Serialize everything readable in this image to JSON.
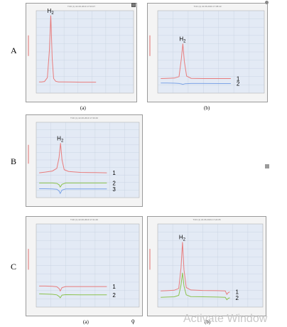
{
  "rows": [
    {
      "label": "A"
    },
    {
      "label": "B"
    },
    {
      "label": "C"
    }
  ],
  "stray_mark": "ǫ",
  "watermark": "Activate Window",
  "chart_data": [
    {
      "id": "A-a",
      "type": "line",
      "caption": "(a)",
      "header": "TCD (1)   22.06.2019 17:03:07",
      "peak_label": "H",
      "peak_sub": "2",
      "xlim": [
        0,
        700
      ],
      "ylim": [
        0,
        1700
      ],
      "series": [
        {
          "color": "#e87c7c",
          "x": [
            20,
            40,
            60,
            80,
            95,
            105,
            115,
            125,
            140,
            160,
            200,
            260,
            320,
            380,
            430
          ],
          "y": [
            230,
            232,
            240,
            320,
            900,
            1600,
            700,
            300,
            245,
            232,
            230,
            228,
            226,
            226,
            225
          ],
          "end_label": ""
        }
      ]
    },
    {
      "id": "A-b",
      "type": "line",
      "caption": "(b)",
      "header": "TCD (1)   22.06.2019 17:08:43",
      "peak_label": "H",
      "peak_sub": "2",
      "xlim": [
        0,
        700
      ],
      "ylim": [
        0,
        1700
      ],
      "series": [
        {
          "color": "#e87c7c",
          "x": [
            20,
            60,
            110,
            140,
            155,
            165,
            175,
            190,
            220,
            300,
            400,
            480
          ],
          "y": [
            300,
            305,
            310,
            340,
            700,
            1020,
            650,
            350,
            305,
            300,
            300,
            300
          ],
          "end_label": "1"
        },
        {
          "color": "#7da4e6",
          "x": [
            20,
            60,
            110,
            140,
            155,
            165,
            180,
            220,
            300,
            400,
            480
          ],
          "y": [
            210,
            208,
            205,
            200,
            190,
            180,
            195,
            200,
            200,
            198,
            198
          ],
          "end_label": "2"
        }
      ]
    },
    {
      "id": "B",
      "type": "line",
      "caption": "",
      "header": "TCD (1)   22.06.2019 17:20:40",
      "peak_label": "H",
      "peak_sub": "2",
      "xlim": [
        0,
        700
      ],
      "ylim": [
        0,
        1700
      ],
      "series": [
        {
          "color": "#e87c7c",
          "x": [
            20,
            60,
            110,
            140,
            155,
            165,
            175,
            190,
            220,
            300,
            400,
            480
          ],
          "y": [
            560,
            575,
            600,
            660,
            900,
            1230,
            850,
            630,
            590,
            570,
            565,
            560
          ],
          "end_label": "1"
        },
        {
          "color": "#8cc24e",
          "x": [
            20,
            60,
            110,
            140,
            155,
            163,
            175,
            200,
            300,
            400,
            480
          ],
          "y": [
            330,
            330,
            330,
            320,
            290,
            240,
            300,
            330,
            330,
            330,
            330
          ],
          "end_label": "2"
        },
        {
          "color": "#7da4e6",
          "x": [
            20,
            60,
            110,
            140,
            155,
            163,
            175,
            200,
            300,
            400,
            480
          ],
          "y": [
            200,
            200,
            198,
            190,
            150,
            95,
            170,
            195,
            195,
            195,
            195
          ],
          "end_label": "3"
        }
      ]
    },
    {
      "id": "C-a",
      "type": "line",
      "caption": "(a)",
      "header": "TCD (1)   22.06.2019 17:21:40",
      "peak_label": "",
      "peak_sub": "",
      "xlim": [
        0,
        700
      ],
      "ylim": [
        0,
        1700
      ],
      "series": [
        {
          "color": "#e87c7c",
          "x": [
            20,
            60,
            110,
            140,
            155,
            163,
            175,
            200,
            300,
            400,
            480
          ],
          "y": [
            430,
            430,
            425,
            415,
            380,
            330,
            400,
            420,
            420,
            420,
            420
          ],
          "end_label": "1"
        },
        {
          "color": "#8cc24e",
          "x": [
            20,
            60,
            110,
            140,
            155,
            163,
            175,
            200,
            300,
            400,
            480
          ],
          "y": [
            270,
            268,
            262,
            250,
            220,
            190,
            245,
            255,
            250,
            250,
            250
          ],
          "end_label": "2"
        }
      ]
    },
    {
      "id": "C-b",
      "type": "line",
      "caption": "(b)",
      "header": "TCD (1)   22.06.2019 17:24:05",
      "peak_label": "H",
      "peak_sub": "2",
      "xlim": [
        0,
        700
      ],
      "ylim": [
        0,
        1700
      ],
      "series": [
        {
          "color": "#e87c7c",
          "x": [
            20,
            60,
            110,
            140,
            155,
            165,
            175,
            190,
            220,
            300,
            400,
            450,
            460,
            470,
            480
          ],
          "y": [
            330,
            335,
            345,
            380,
            800,
            1330,
            760,
            400,
            350,
            340,
            335,
            330,
            260,
            300,
            310
          ],
          "end_label": "1"
        },
        {
          "color": "#8cc24e",
          "x": [
            20,
            60,
            110,
            140,
            155,
            165,
            175,
            190,
            220,
            300,
            400,
            450,
            460,
            470,
            480
          ],
          "y": [
            200,
            205,
            210,
            240,
            450,
            700,
            430,
            250,
            215,
            210,
            205,
            200,
            150,
            180,
            190
          ],
          "end_label": "2"
        }
      ]
    }
  ]
}
